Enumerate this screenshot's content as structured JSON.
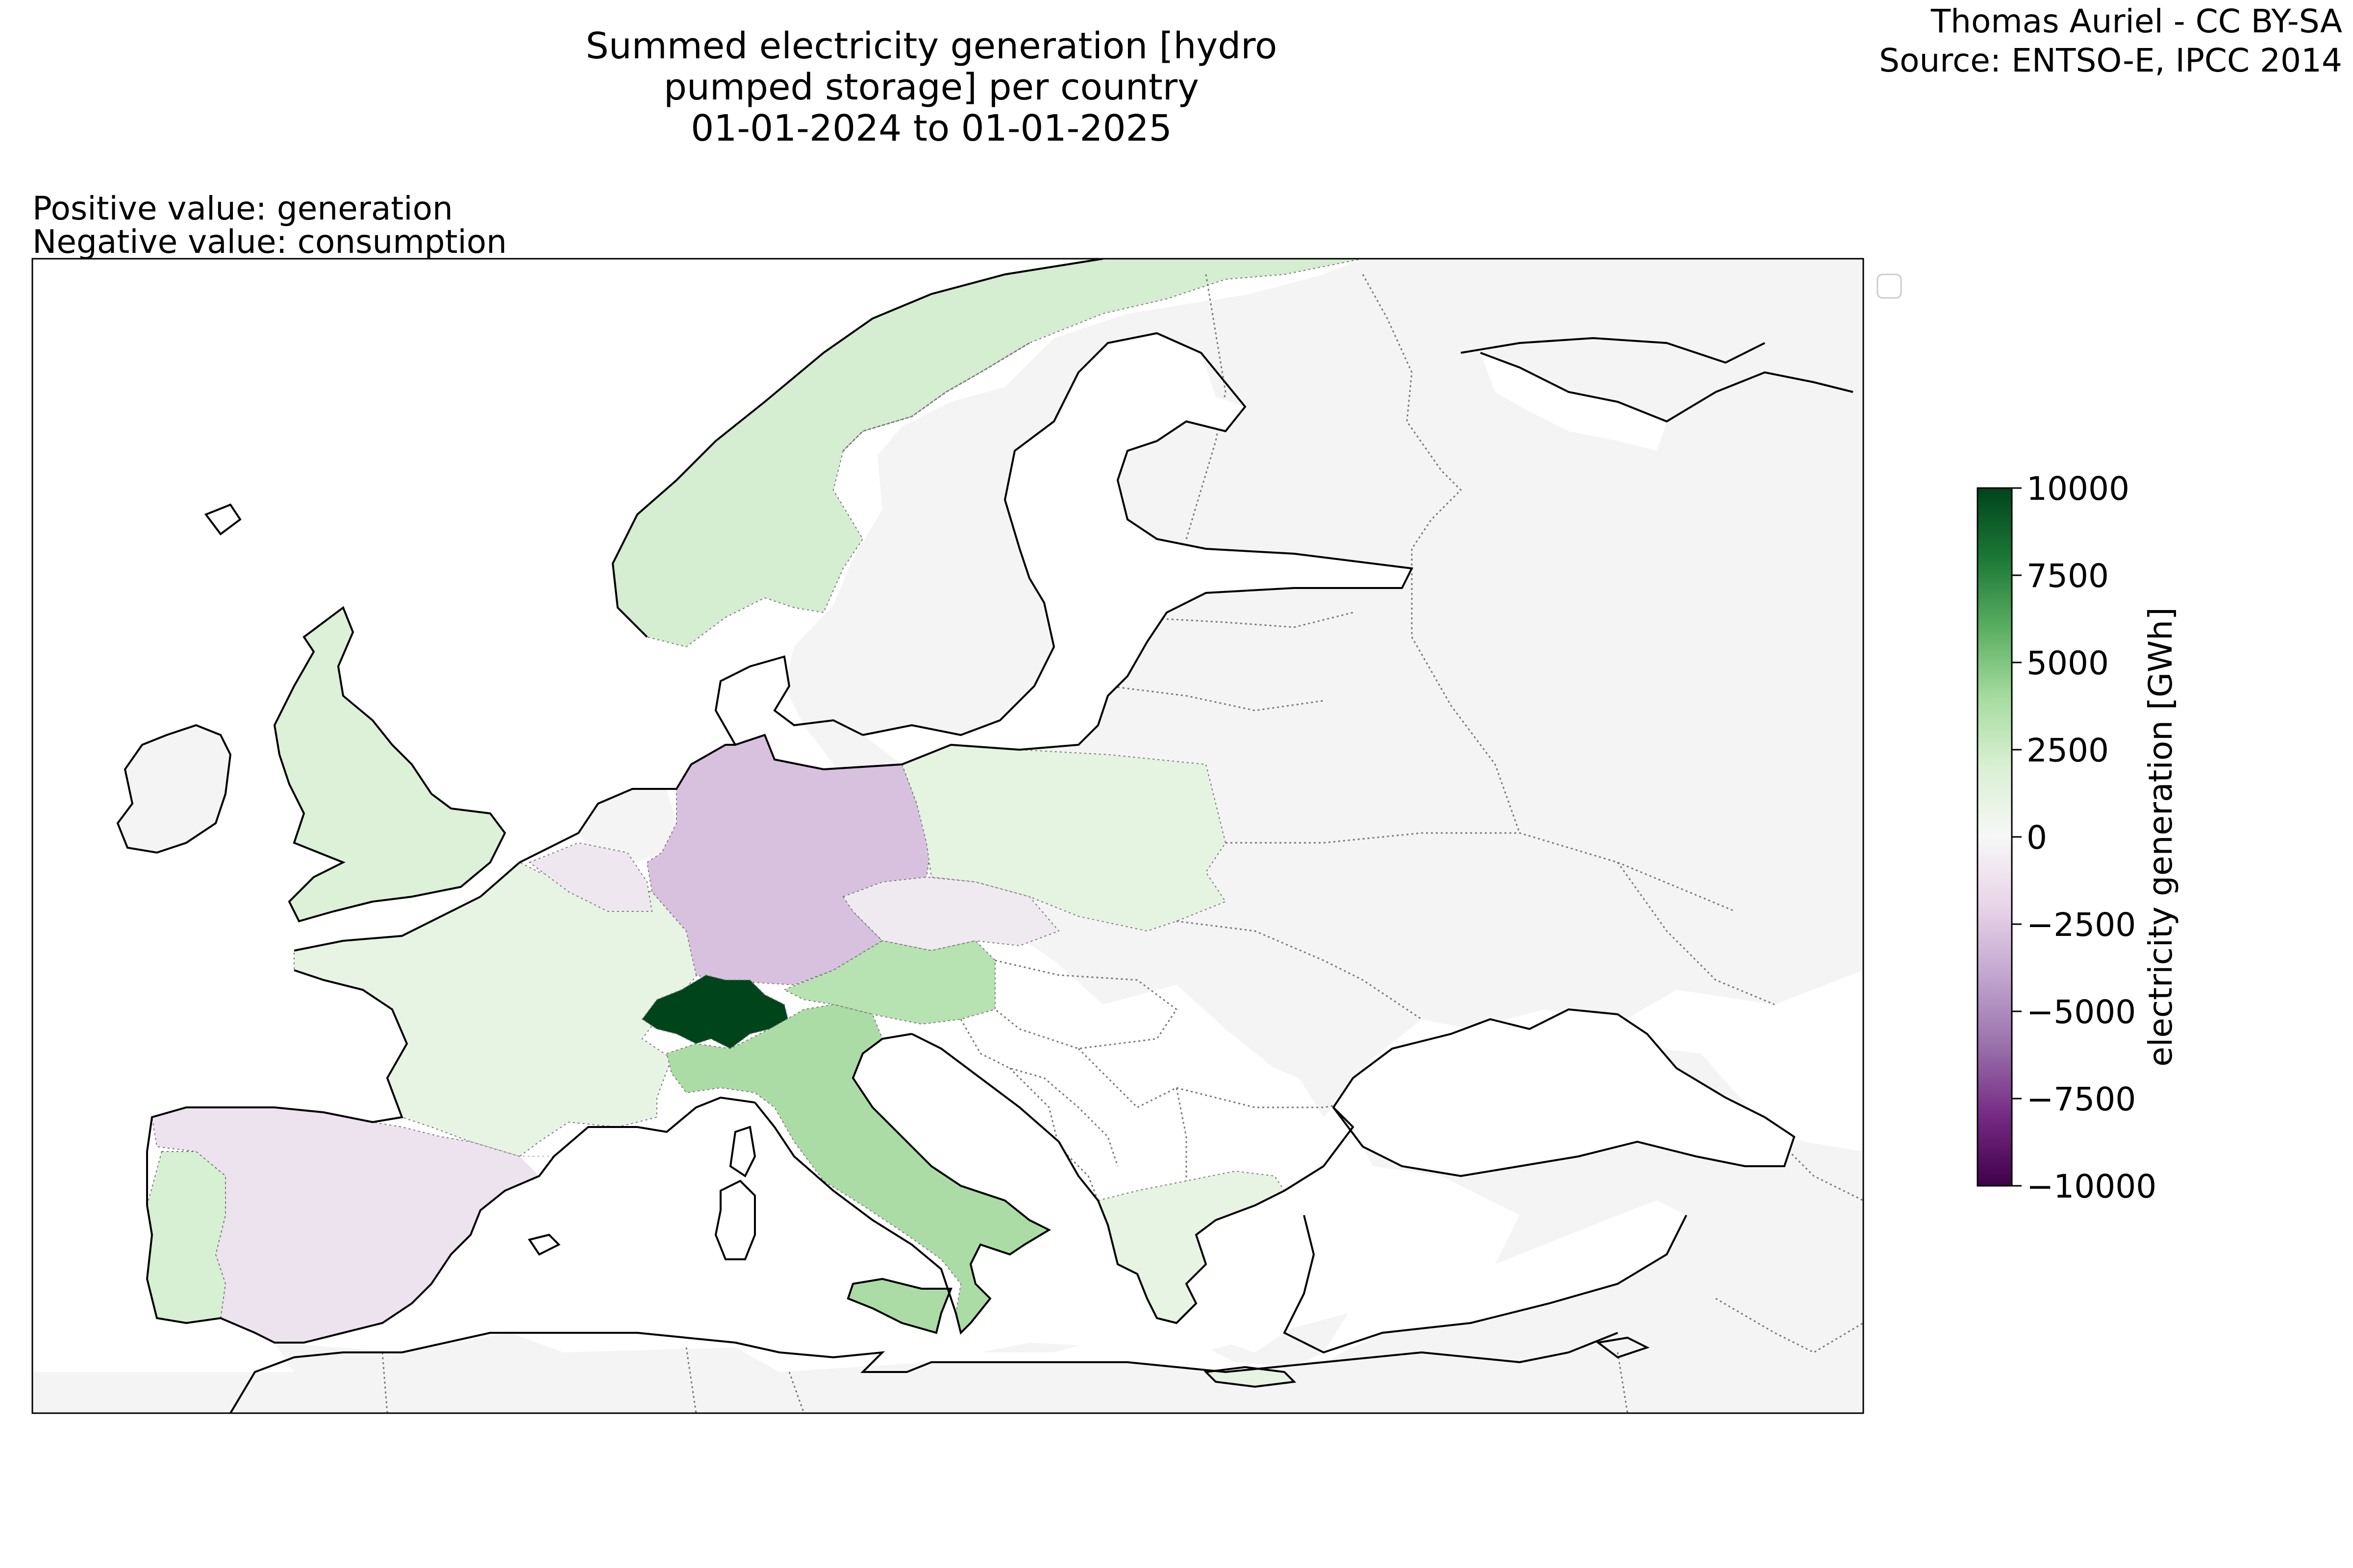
{
  "title": {
    "line1": "Summed electricity generation [hydro pumped storage] per country",
    "line2": "01-01-2024 to 01-01-2025"
  },
  "attribution": {
    "line1": "Thomas Auriel - CC BY-SA",
    "line2": "Source: ENTSO-E, IPCC 2014"
  },
  "note": {
    "line1": "Positive value: generation",
    "line2": "Negative value: consumption"
  },
  "colorbar": {
    "label": "electricity generation [GWh]",
    "ticks": [
      "10000",
      "7500",
      "5000",
      "2500",
      "0",
      "−2500",
      "−5000",
      "−7500",
      "−10000"
    ],
    "range": [
      -10000,
      10000
    ],
    "colormap": "PRGn",
    "stops": [
      "#40004b",
      "#762a83",
      "#9970ab",
      "#c2a5cf",
      "#e7d4e8",
      "#f7f7f7",
      "#d9f0d3",
      "#a6dba0",
      "#5aae61",
      "#1b7837",
      "#00441b"
    ]
  },
  "colors": {
    "no_data": "#f4f4f4",
    "sea": "#ffffff",
    "coast": "#000000",
    "border": "#777777"
  },
  "countries": [
    {
      "name": "Switzerland",
      "color": "#00441b"
    },
    {
      "name": "Italy",
      "color": "#acdca6"
    },
    {
      "name": "Austria",
      "color": "#b7e2b1"
    },
    {
      "name": "Norway",
      "color": "#d5edd0"
    },
    {
      "name": "Portugal",
      "color": "#d7efd2"
    },
    {
      "name": "United Kingdom",
      "color": "#dcf1d7"
    },
    {
      "name": "Poland",
      "color": "#e5f4e1"
    },
    {
      "name": "France",
      "color": "#e7f4e4"
    },
    {
      "name": "Greece",
      "color": "#e7f3e3"
    },
    {
      "name": "Germany",
      "color": "#d8c1df"
    },
    {
      "name": "Spain",
      "color": "#ede3ee"
    },
    {
      "name": "Czechia",
      "color": "#efeaf0"
    },
    {
      "name": "Belgium",
      "color": "#eee7f0"
    }
  ]
}
